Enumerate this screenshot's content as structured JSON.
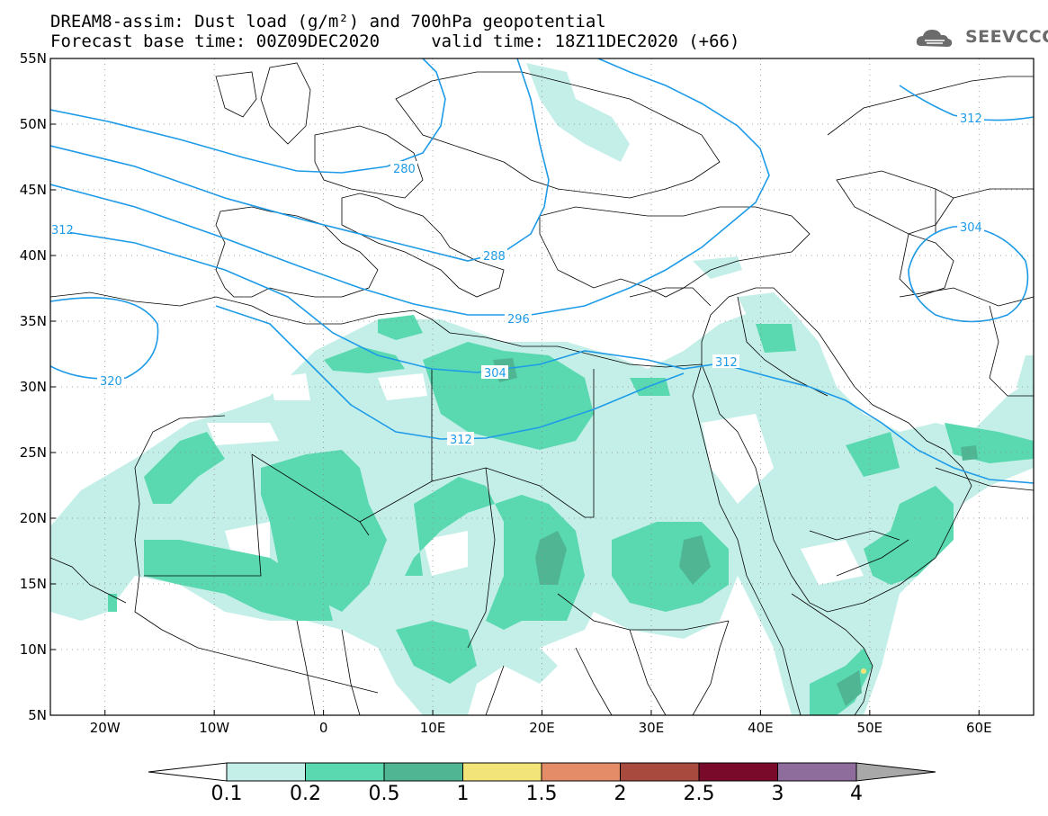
{
  "header": {
    "title_line1": "DREAM8-assim: Dust load (g/m²) and 700hPa geopotential",
    "title_line2": "Forecast base time: 00Z09DEC2020     valid time: 18Z11DEC2020 (+66)",
    "logo_text": "SEEVCCC"
  },
  "axes": {
    "lon_range": [
      -25,
      65
    ],
    "lat_range": [
      5,
      55
    ],
    "lat_ticks": [
      "55N",
      "50N",
      "45N",
      "40N",
      "35N",
      "30N",
      "25N",
      "20N",
      "15N",
      "10N",
      "5N"
    ],
    "lon_ticks": [
      "20W",
      "10W",
      "0",
      "10E",
      "20E",
      "30E",
      "40E",
      "50E",
      "60E"
    ]
  },
  "contour_labels": {
    "c280": "280",
    "c288": "288",
    "c296": "296",
    "c304": "304",
    "c312a": "312",
    "c312b": "312",
    "c312c": "312",
    "c312d": "312",
    "c320": "320",
    "c304b": "304"
  },
  "colorbar": {
    "labels": [
      "0.1",
      "0.2",
      "0.5",
      "1",
      "1.5",
      "2",
      "2.5",
      "3",
      "4"
    ],
    "colors": [
      "#c4efe8",
      "#5ad9b0",
      "#4fb593",
      "#f3e47a",
      "#e48c67",
      "#a94a3f",
      "#7a0a2a",
      "#8e6c9c"
    ],
    "under_color": "#ffffff",
    "over_color": "#a8a8a8"
  },
  "colors": {
    "dust_light": "#c4efe8",
    "dust_mid": "#5ad9b0",
    "dust_dark": "#4fb593",
    "contour": "#1e9be8",
    "borders": "#000000"
  }
}
